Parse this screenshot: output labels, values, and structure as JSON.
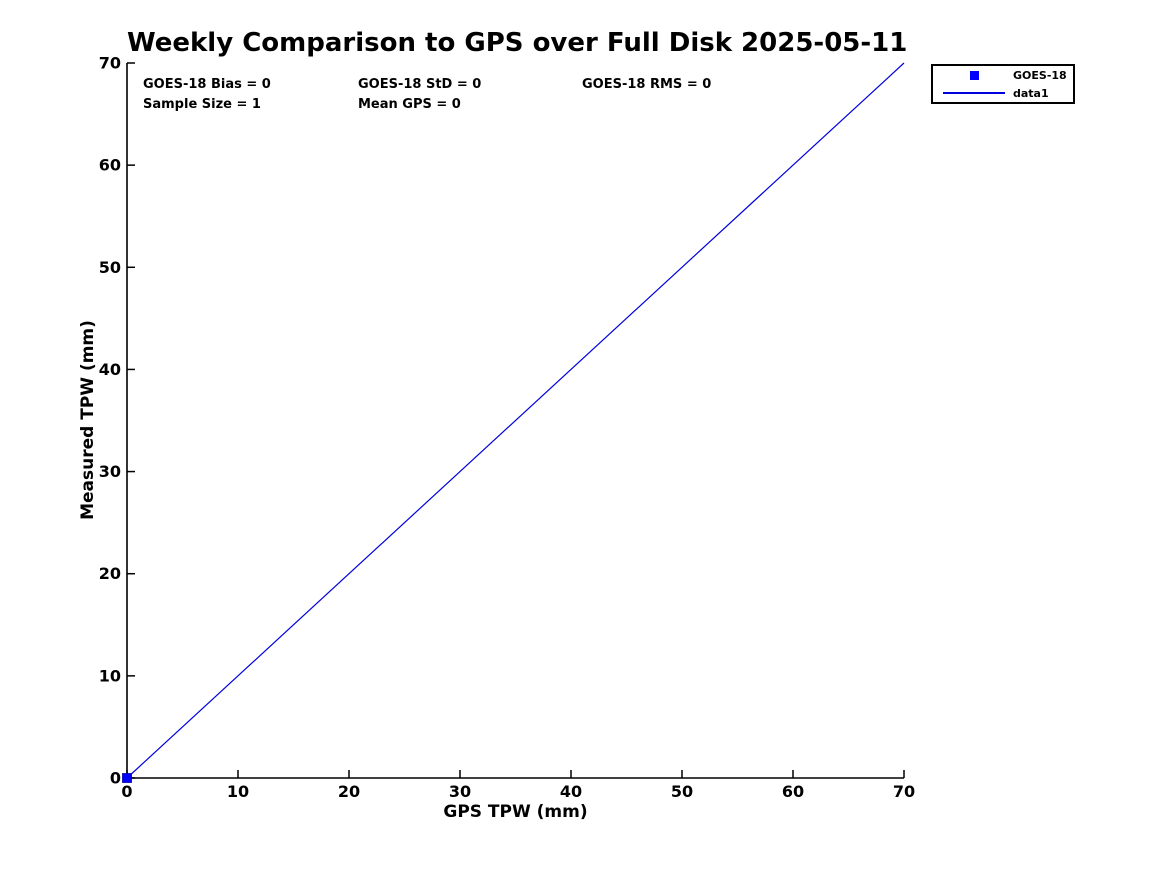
{
  "chart_data": {
    "type": "scatter",
    "title": "Weekly Comparison to GPS over Full Disk 2025-05-11",
    "xlabel": "GPS TPW (mm)",
    "ylabel": "Measured TPW (mm)",
    "xlim": [
      0,
      70
    ],
    "ylim": [
      0,
      70
    ],
    "xticks": [
      0,
      10,
      20,
      30,
      40,
      50,
      60,
      70
    ],
    "yticks": [
      0,
      10,
      20,
      30,
      40,
      50,
      60,
      70
    ],
    "grid": false,
    "axis_color": "#000000",
    "series": [
      {
        "name": "GOES-18",
        "type": "scatter",
        "marker": "square",
        "color": "#0000ff",
        "points": [
          [
            0,
            0
          ]
        ]
      },
      {
        "name": "data1",
        "type": "line",
        "color": "#0000dd",
        "points": [
          [
            0,
            0
          ],
          [
            70,
            70
          ]
        ]
      }
    ],
    "annotations": [
      {
        "text": "GOES-18 Bias = 0"
      },
      {
        "text": "GOES-18 StD = 0"
      },
      {
        "text": "GOES-18 RMS = 0"
      },
      {
        "text": "Sample Size = 1"
      },
      {
        "text": "Mean GPS = 0"
      }
    ],
    "legend": {
      "position": "top-right-outside",
      "entries": [
        {
          "label": "GOES-18",
          "glyph": "square-marker",
          "color": "#0000ff"
        },
        {
          "label": "data1",
          "glyph": "line",
          "color": "#0000dd"
        }
      ]
    }
  }
}
